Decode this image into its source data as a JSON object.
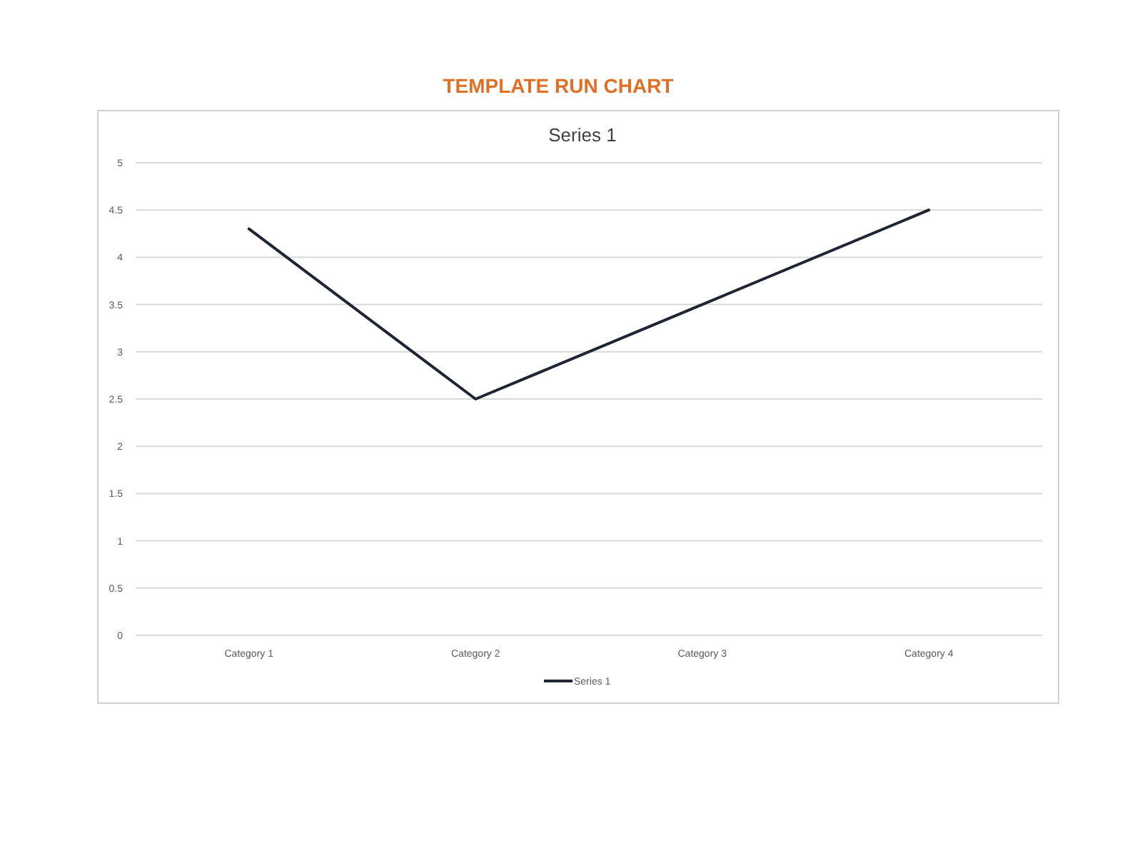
{
  "chart_data": {
    "type": "line",
    "title": "TEMPLATE RUN CHART",
    "subtitle": "Series 1",
    "categories": [
      "Category 1",
      "Category 2",
      "Category 3",
      "Category 4"
    ],
    "series": [
      {
        "name": "Series 1",
        "color": "#1f2532",
        "values": [
          4.3,
          2.5,
          3.5,
          4.5
        ]
      }
    ],
    "ylim": [
      0,
      5
    ],
    "yticks": [
      0,
      0.5,
      1,
      1.5,
      2,
      2.5,
      3,
      3.5,
      4,
      4.5,
      5
    ],
    "grid": "y",
    "legend": "bottom",
    "marker": "none",
    "line_style": "solid"
  }
}
